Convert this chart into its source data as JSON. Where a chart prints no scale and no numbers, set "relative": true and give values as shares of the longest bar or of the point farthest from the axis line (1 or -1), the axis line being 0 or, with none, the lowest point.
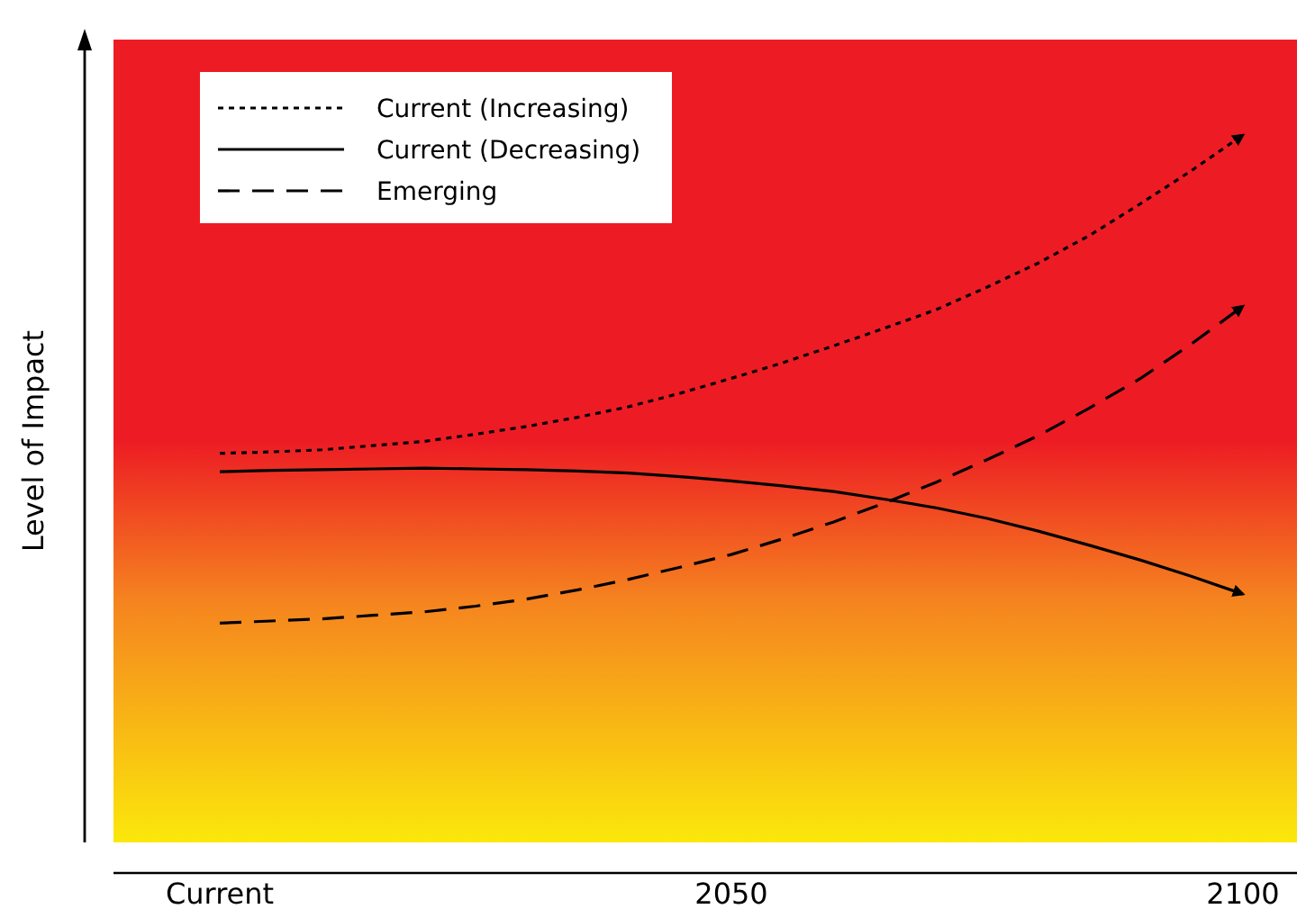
{
  "chart_data": {
    "type": "line",
    "relative": true,
    "ylabel": "Level of Impact",
    "legend": "top left",
    "marker": "none",
    "categories": [
      "Current",
      null,
      null,
      null,
      null,
      null,
      null,
      null,
      null,
      null,
      "2050",
      null,
      null,
      null,
      null,
      null,
      null,
      null,
      null,
      null,
      "2100"
    ],
    "series": [
      {
        "name": "Current (Increasing)",
        "color": "#000000",
        "line_style": "dotted",
        "values": [
          0.55,
          0.552,
          0.555,
          0.561,
          0.567,
          0.577,
          0.588,
          0.601,
          0.616,
          0.635,
          0.656,
          0.678,
          0.702,
          0.727,
          0.753,
          0.785,
          0.819,
          0.858,
          0.903,
          0.95,
          1
        ]
      },
      {
        "name": "Current (Decreasing)",
        "color": "#000000",
        "line_style": "solid",
        "values": [
          0.524,
          0.526,
          0.527,
          0.528,
          0.529,
          0.528,
          0.527,
          0.525,
          0.522,
          0.517,
          0.511,
          0.504,
          0.496,
          0.485,
          0.473,
          0.458,
          0.44,
          0.42,
          0.399,
          0.376,
          0.351
        ]
      },
      {
        "name": "Emerging",
        "color": "#000000",
        "line_style": "dashed",
        "values": [
          0.31,
          0.313,
          0.316,
          0.321,
          0.326,
          0.334,
          0.344,
          0.357,
          0.372,
          0.389,
          0.407,
          0.429,
          0.453,
          0.48,
          0.509,
          0.541,
          0.575,
          0.614,
          0.656,
          0.705,
          0.758
        ]
      }
    ]
  }
}
